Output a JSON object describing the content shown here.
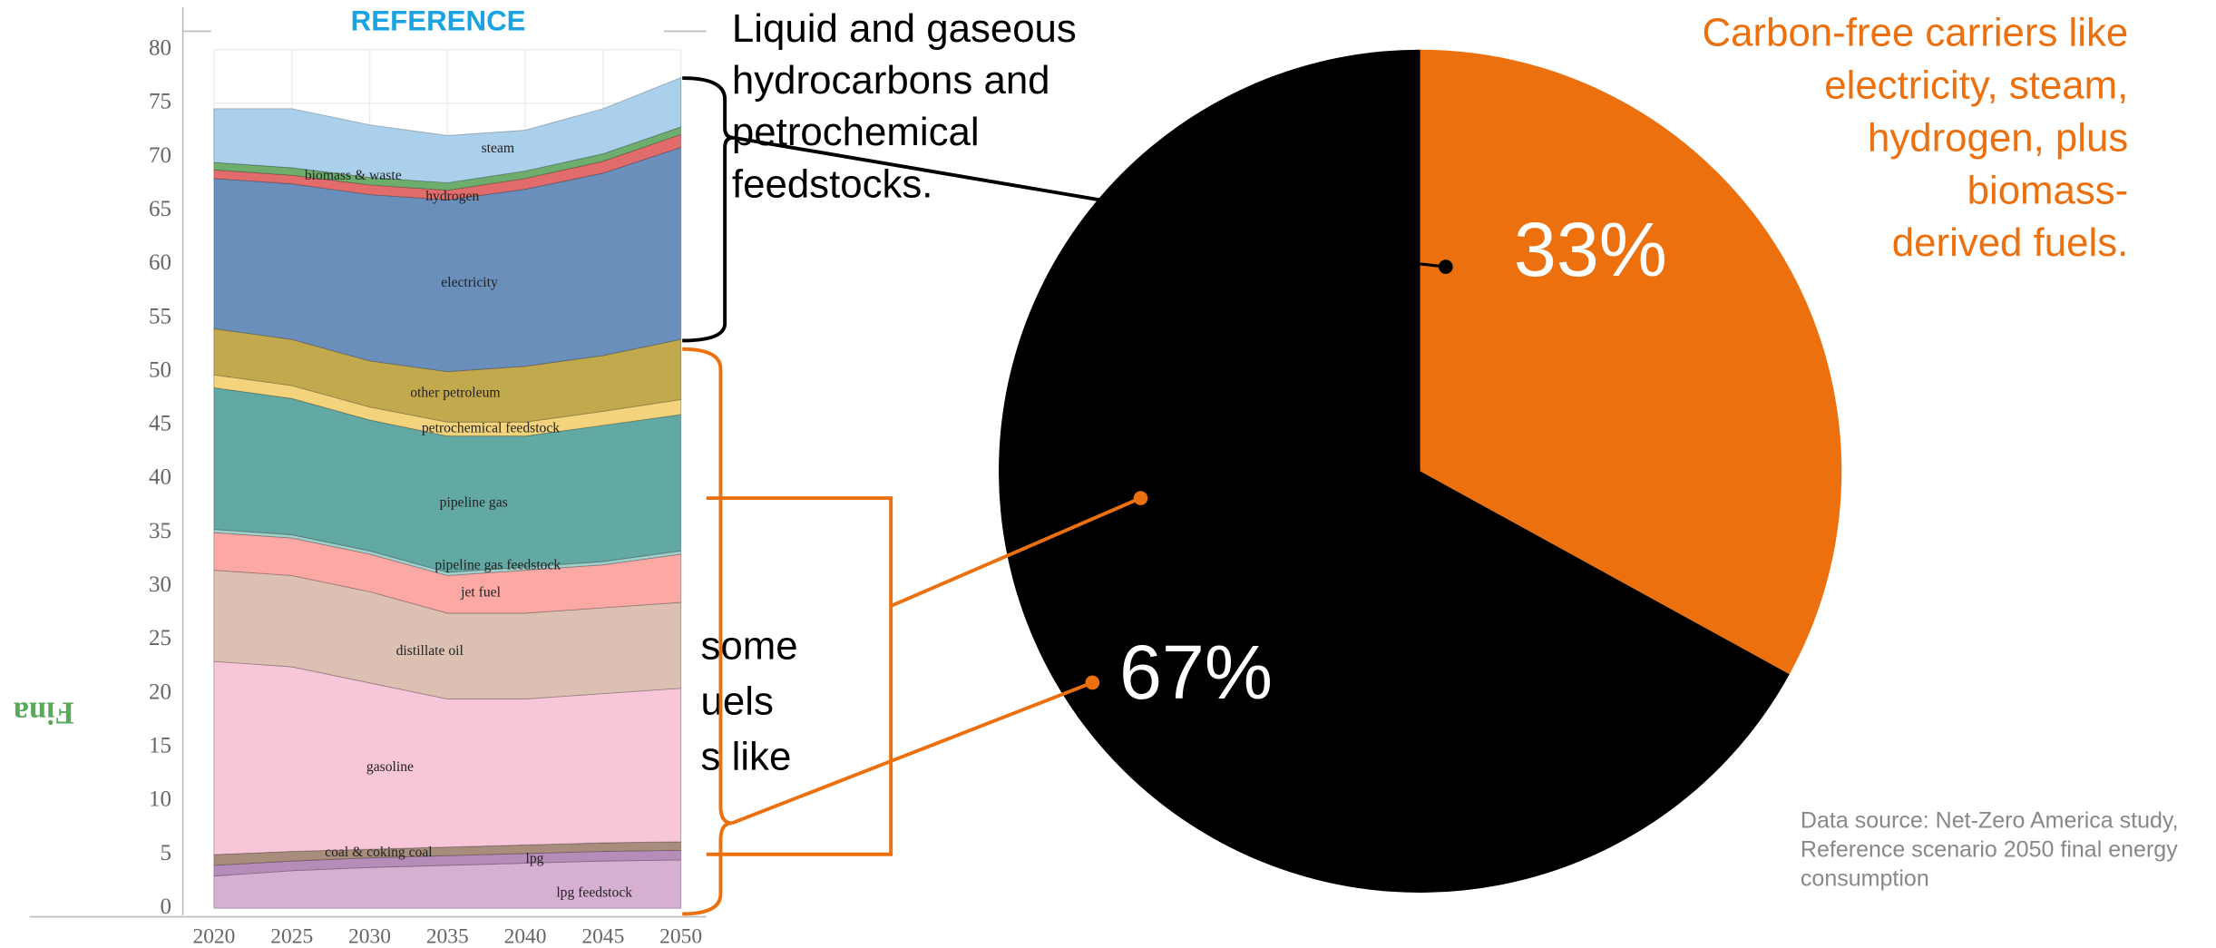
{
  "chart_data": [
    {
      "type": "stacked_area",
      "title": "REFERENCE",
      "ylabel": "Fina",
      "x": [
        2020,
        2025,
        2030,
        2035,
        2040,
        2045,
        2050
      ],
      "xlim": [
        2020,
        2050
      ],
      "xticks": [
        2020,
        2025,
        2030,
        2035,
        2040,
        2045,
        2050
      ],
      "ylim": [
        0,
        80
      ],
      "yticks": [
        0,
        5,
        10,
        15,
        20,
        25,
        30,
        35,
        40,
        45,
        50,
        55,
        60,
        65,
        70,
        75,
        80
      ],
      "grid": true,
      "series": [
        {
          "name": "lpg  feedstock",
          "color": "#d6b0d3",
          "values": [
            3.0,
            3.5,
            3.8,
            4.0,
            4.2,
            4.4,
            4.5
          ]
        },
        {
          "name": "lpg",
          "color": "#b68db8",
          "values": [
            1.0,
            0.9,
            0.9,
            0.9,
            0.9,
            0.9,
            0.9
          ]
        },
        {
          "name": "coal & coking coal",
          "color": "#a88c7c",
          "values": [
            1.0,
            0.9,
            0.8,
            0.8,
            0.8,
            0.8,
            0.8
          ]
        },
        {
          "name": "gasoline",
          "color": "#f8c6d9",
          "values": [
            18.0,
            17.2,
            15.5,
            13.8,
            13.6,
            13.9,
            14.3
          ]
        },
        {
          "name": "distillate oil",
          "color": "#dcc0b2",
          "values": [
            8.5,
            8.5,
            8.5,
            8.0,
            8.0,
            8.0,
            8.0
          ]
        },
        {
          "name": "jet fuel",
          "color": "#fca8a5",
          "values": [
            3.5,
            3.5,
            3.5,
            3.5,
            4.0,
            4.0,
            4.5
          ]
        },
        {
          "name": "pipeline gas feedstock",
          "color": "#9fd0cc",
          "values": [
            0.3,
            0.3,
            0.3,
            0.3,
            0.3,
            0.3,
            0.3
          ]
        },
        {
          "name": "pipeline gas",
          "color": "#62a8a3",
          "values": [
            13.2,
            12.7,
            12.2,
            12.7,
            12.2,
            12.7,
            12.7
          ]
        },
        {
          "name": "petrochemical feedstock",
          "color": "#f3d47c",
          "values": [
            1.2,
            1.2,
            1.2,
            1.3,
            1.3,
            1.3,
            1.4
          ]
        },
        {
          "name": "other petroleum",
          "color": "#c3a94d",
          "values": [
            4.3,
            4.3,
            4.3,
            4.7,
            5.2,
            5.2,
            5.6
          ]
        },
        {
          "name": "electricity",
          "color": "#6a8fba",
          "values": [
            14.0,
            14.5,
            15.5,
            16.0,
            16.5,
            17.0,
            17.9
          ]
        },
        {
          "name": "hydrogen",
          "color": "#e26c6c",
          "values": [
            0.8,
            0.8,
            0.9,
            0.9,
            1.0,
            1.1,
            1.2
          ]
        },
        {
          "name": "biomass & waste",
          "color": "#6dae6d",
          "values": [
            0.7,
            0.7,
            0.7,
            0.7,
            0.7,
            0.7,
            0.7
          ]
        },
        {
          "name": "steam",
          "color": "#abd0eb",
          "values": [
            5.0,
            5.5,
            4.9,
            4.4,
            3.8,
            4.2,
            4.6
          ]
        }
      ]
    },
    {
      "type": "pie",
      "values": [
        33,
        67
      ],
      "value_labels": [
        "33%",
        "67%"
      ],
      "colors": [
        "#ed700f",
        "#000000"
      ]
    }
  ],
  "annotations": {
    "hydrocarbons": [
      "Liquid and gaseous",
      "hydrocarbons and",
      "petrochemical",
      "feedstocks."
    ],
    "carbon_free": [
      "Carbon-free carriers like",
      "electricity, steam,",
      "hydrogen, plus",
      "biomass-",
      "derived fuels."
    ],
    "hidden": [
      "some",
      "uels",
      "s like"
    ],
    "source": [
      "Data source: Net-Zero America study,",
      "Reference scenario 2050 final energy",
      "consumption"
    ]
  }
}
